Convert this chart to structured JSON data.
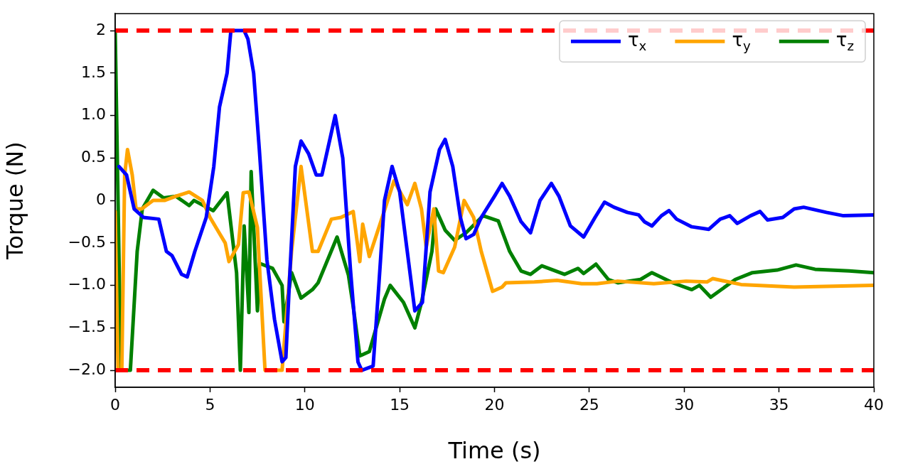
{
  "chart_data": {
    "type": "line",
    "xlabel": "Time (s)",
    "ylabel": "Torque (N)",
    "xlim": [
      0,
      40
    ],
    "xticks": [
      0,
      5,
      10,
      15,
      20,
      25,
      30,
      35,
      40
    ],
    "ylim": [
      -2.2,
      2.2
    ],
    "yticks": [
      {
        "value": -2,
        "label": "−2.0"
      },
      {
        "value": -1.5,
        "label": "−1.5"
      },
      {
        "value": -1,
        "label": "−1.0"
      },
      {
        "value": -0.5,
        "label": "−0.5"
      },
      0,
      {
        "value": 0.5,
        "label": "0.5"
      },
      {
        "value": 1,
        "label": "1.0"
      },
      1.5,
      2
    ],
    "grid": false,
    "legend": "top right",
    "marker": "none",
    "line_style": "solid",
    "ref_lines": [
      {
        "axis": "y",
        "value": 2,
        "color": "#ff0000",
        "line_style": "dashed"
      },
      {
        "axis": "y",
        "value": -2,
        "color": "#ff0000",
        "line_style": "dashed"
      }
    ],
    "series": [
      {
        "name": "τ$_{x}$",
        "color": "#0000ff",
        "x": [
          0.2,
          0.6,
          1.0,
          1.5,
          2.3,
          2.7,
          3.0,
          3.5,
          3.8,
          4.2,
          4.8,
          5.2,
          5.5,
          5.9,
          6.1,
          6.8,
          7.0,
          7.3,
          7.6,
          8.0,
          8.4,
          8.8,
          9.0,
          9.2,
          9.5,
          9.8,
          10.2,
          10.6,
          10.9,
          11.2,
          11.6,
          12.0,
          12.4,
          12.8,
          13.0,
          13.6,
          13.9,
          14.2,
          14.6,
          15.0,
          15.4,
          15.8,
          16.2,
          16.6,
          17.1,
          17.4,
          17.8,
          18.2,
          18.5,
          18.9,
          19.3,
          20.0,
          20.4,
          20.8,
          21.4,
          21.9,
          22.4,
          23.0,
          23.4,
          24.0,
          24.7,
          25.3,
          25.8,
          26.3,
          27.0,
          27.6,
          27.9,
          28.3,
          28.8,
          29.2,
          29.6,
          30.4,
          31.0,
          31.3,
          31.9,
          32.4,
          32.8,
          33.5,
          34.0,
          34.4,
          35.2,
          35.8,
          36.3,
          37.5,
          38.4,
          40
        ],
        "values": [
          0.4,
          0.3,
          -0.1,
          -0.2,
          -0.22,
          -0.6,
          -0.65,
          -0.87,
          -0.9,
          -0.6,
          -0.2,
          0.4,
          1.1,
          1.5,
          2.0,
          2.0,
          1.9,
          1.5,
          0.6,
          -0.7,
          -1.4,
          -1.9,
          -1.85,
          -0.9,
          0.4,
          0.7,
          0.55,
          0.3,
          0.3,
          0.6,
          1.0,
          0.5,
          -0.8,
          -1.9,
          -2.0,
          -1.95,
          -1.0,
          0.0,
          0.4,
          0.1,
          -0.6,
          -1.3,
          -1.2,
          0.1,
          0.6,
          0.72,
          0.4,
          -0.2,
          -0.45,
          -0.4,
          -0.2,
          0.05,
          0.2,
          0.05,
          -0.25,
          -0.38,
          0.0,
          0.2,
          0.05,
          -0.3,
          -0.43,
          -0.2,
          -0.02,
          -0.08,
          -0.14,
          -0.17,
          -0.25,
          -0.3,
          -0.18,
          -0.12,
          -0.22,
          -0.31,
          -0.33,
          -0.34,
          -0.22,
          -0.18,
          -0.27,
          -0.18,
          -0.13,
          -0.23,
          -0.2,
          -0.1,
          -0.08,
          -0.14,
          -0.18,
          -0.17
        ]
      },
      {
        "name": "τ$_{y}$",
        "color": "#ffa500",
        "x": [
          0,
          0.15,
          0.35,
          0.5,
          0.65,
          0.9,
          1.1,
          1.4,
          2.0,
          2.6,
          3.2,
          3.9,
          4.6,
          5.0,
          5.4,
          5.8,
          6.0,
          6.5,
          6.75,
          7.05,
          7.5,
          7.9,
          8.8,
          9.3,
          9.8,
          10.4,
          10.7,
          11.4,
          11.9,
          12.55,
          12.9,
          13.05,
          13.4,
          14.05,
          14.7,
          15.4,
          15.8,
          16.15,
          16.4,
          16.8,
          17.05,
          17.3,
          17.9,
          18.4,
          18.9,
          19.3,
          19.9,
          20.4,
          20.6,
          22.1,
          23.3,
          24.6,
          25.4,
          26.5,
          28.4,
          30.1,
          31.2,
          31.5,
          33.0,
          35.8,
          40
        ],
        "values": [
          -0.13,
          -2.0,
          -2.0,
          0.3,
          0.6,
          0.3,
          -0.1,
          -0.1,
          0.0,
          0.0,
          0.05,
          0.1,
          0.0,
          -0.2,
          -0.35,
          -0.5,
          -0.72,
          -0.52,
          0.09,
          0.1,
          -0.32,
          -2.0,
          -2.0,
          -0.6,
          0.4,
          -0.6,
          -0.6,
          -0.22,
          -0.2,
          -0.13,
          -0.72,
          -0.28,
          -0.66,
          -0.22,
          0.23,
          -0.05,
          0.2,
          -0.1,
          -0.55,
          -0.1,
          -0.83,
          -0.85,
          -0.55,
          0.0,
          -0.2,
          -0.6,
          -1.07,
          -1.02,
          -0.97,
          -0.96,
          -0.94,
          -0.98,
          -0.98,
          -0.95,
          -0.98,
          -0.95,
          -0.96,
          -0.92,
          -0.99,
          -1.02,
          -1.0
        ]
      },
      {
        "name": "τ$_{z}$",
        "color": "#008000",
        "x": [
          0,
          0.3,
          0.8,
          1.16,
          1.43,
          2.0,
          2.55,
          3.2,
          3.9,
          4.16,
          5.17,
          5.9,
          6.4,
          6.6,
          6.8,
          7.05,
          7.17,
          7.5,
          7.6,
          8.3,
          8.8,
          8.9,
          9.3,
          9.8,
          10.4,
          10.7,
          11.7,
          12.3,
          12.55,
          12.9,
          13.4,
          14.2,
          14.5,
          15.2,
          15.8,
          16.15,
          16.7,
          16.9,
          17.4,
          17.9,
          18.5,
          19.4,
          20.2,
          20.8,
          21.4,
          21.9,
          22.5,
          23.7,
          24.4,
          24.7,
          25.35,
          26.0,
          26.5,
          27.7,
          28.3,
          29.4,
          30.4,
          30.8,
          31.4,
          32.7,
          33.6,
          34.9,
          35.9,
          36.9,
          38.7,
          40
        ],
        "values": [
          2.0,
          -2.0,
          -2.0,
          -0.6,
          -0.1,
          0.12,
          0.03,
          0.05,
          -0.06,
          0.0,
          -0.12,
          0.09,
          -0.85,
          -2.0,
          -0.3,
          -1.32,
          0.34,
          -1.3,
          -0.74,
          -0.8,
          -1.0,
          -1.43,
          -0.85,
          -1.15,
          -1.05,
          -0.97,
          -0.43,
          -0.88,
          -1.25,
          -1.83,
          -1.78,
          -1.16,
          -1.0,
          -1.2,
          -1.5,
          -1.2,
          -0.6,
          -0.1,
          -0.35,
          -0.47,
          -0.38,
          -0.18,
          -0.24,
          -0.6,
          -0.83,
          -0.87,
          -0.77,
          -0.87,
          -0.8,
          -0.86,
          -0.75,
          -0.93,
          -0.97,
          -0.93,
          -0.85,
          -0.97,
          -1.05,
          -1.0,
          -1.14,
          -0.93,
          -0.85,
          -0.82,
          -0.76,
          -0.81,
          -0.83,
          -0.85
        ]
      }
    ]
  }
}
